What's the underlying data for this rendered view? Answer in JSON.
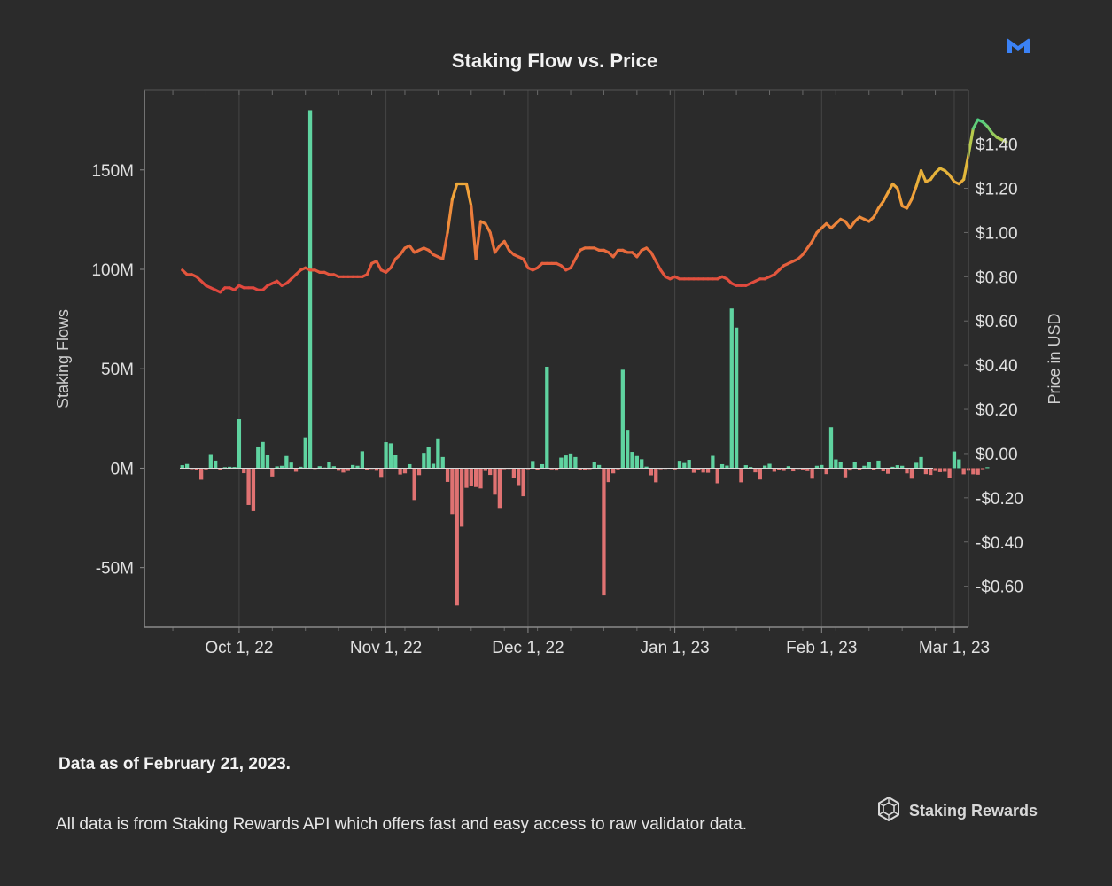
{
  "brand": {
    "name": "Staking Rewards",
    "color": "#3b82f6"
  },
  "footer": {
    "date_note": "Data as of February 21, 2023.",
    "source_note": "All data is from Staking Rewards API which offers fast and easy access to raw validator data."
  },
  "colors": {
    "background": "#2b2b2b",
    "positive_bar": "#5fd3a0",
    "negative_bar": "#e07272",
    "price_low": "#e0473e",
    "price_mid": "#f2a23a",
    "price_high": "#3fd08a"
  },
  "chart_data": {
    "type": "bar",
    "title": "Staking Flow vs. Price",
    "ylabel": "Staking Flows",
    "y2label": "Price in USD",
    "ylim": [
      -80000000,
      190000000
    ],
    "y2lim": [
      -0.7857,
      1.6429
    ],
    "yticks": [
      {
        "value": -50000000,
        "label": "-50M"
      },
      {
        "value": 0,
        "label": "0M"
      },
      {
        "value": 50000000,
        "label": "50M"
      },
      {
        "value": 100000000,
        "label": "100M"
      },
      {
        "value": 150000000,
        "label": "150M"
      }
    ],
    "y2ticks": [
      {
        "value": -0.6,
        "label": "-$0.60"
      },
      {
        "value": -0.4,
        "label": "-$0.40"
      },
      {
        "value": -0.2,
        "label": "-$0.20"
      },
      {
        "value": 0,
        "label": "$0.00"
      },
      {
        "value": 0.2,
        "label": "$0.20"
      },
      {
        "value": 0.4,
        "label": "$0.40"
      },
      {
        "value": 0.6,
        "label": "$0.60"
      },
      {
        "value": 0.8,
        "label": "$0.80"
      },
      {
        "value": 1.0,
        "label": "$1.00"
      },
      {
        "value": 1.2,
        "label": "$1.20"
      },
      {
        "value": 1.4,
        "label": "$1.40"
      }
    ],
    "xlim": [
      "2022-09-11",
      "2023-03-04"
    ],
    "xticks": [
      {
        "date": "2022-10-01",
        "label": "Oct 1, 22"
      },
      {
        "date": "2022-11-01",
        "label": "Nov 1, 22"
      },
      {
        "date": "2022-12-01",
        "label": "Dec 1, 22"
      },
      {
        "date": "2023-01-01",
        "label": "Jan 1, 23"
      },
      {
        "date": "2023-02-01",
        "label": "Feb 1, 23"
      },
      {
        "date": "2023-03-01",
        "label": "Mar 1, 23"
      }
    ],
    "grid": true,
    "series": [
      {
        "kind": "bar",
        "start_date": "2022-09-19",
        "values": [
          1.5,
          2.1,
          -0.5,
          -0.7,
          -5.8,
          -0.6,
          7.1,
          3.8,
          -0.7,
          0.5,
          0.7,
          0.6,
          24.7,
          -2.5,
          -18.5,
          -21.6,
          10.9,
          13.2,
          6.6,
          -4.2,
          0.9,
          1.2,
          6.1,
          2.8,
          -1.8,
          0.7,
          15.5,
          180.0,
          -0.4,
          1.0,
          0.3,
          3.1,
          1.0,
          -1.3,
          -2.2,
          -1.4,
          1.6,
          1.2,
          8.5,
          -0.7,
          -0.4,
          -1.3,
          -4.4,
          13.1,
          12.5,
          6.5,
          -3.2,
          -2.6,
          2.0,
          -16.0,
          -3.5,
          7.7,
          10.8,
          2.2,
          15.0,
          5.6,
          -6.9,
          -23.1,
          -69.0,
          -29.4,
          -9.9,
          -9.0,
          -9.5,
          -10.2,
          -1.4,
          -3.4,
          -13.3,
          -20.0,
          -0.5,
          -0.2,
          -4.8,
          -8.5,
          -14.1,
          -0.5,
          3.6,
          -0.7,
          2.0,
          51.0,
          -0.6,
          -1.2,
          5.3,
          6.4,
          7.4,
          5.6,
          -0.9,
          -1.0,
          -0.5,
          3.2,
          1.6,
          -64.0,
          -7.0,
          -2.6,
          -0.6,
          49.5,
          19.3,
          8.2,
          6.1,
          4.5,
          0.8,
          -3.6,
          -7.1,
          -0.5,
          -0.2,
          0.2,
          -0.6,
          3.7,
          2.6,
          4.2,
          -2.3,
          -0.8,
          -2.2,
          -2.3,
          6.2,
          -7.6,
          2.0,
          1.3,
          80.3,
          70.7,
          -7.1,
          1.5,
          0.6,
          -2.1,
          -5.7,
          1.3,
          2.2,
          -1.8,
          -0.8,
          -1.4,
          1.0,
          -1.6,
          -0.4,
          -1.0,
          -1.5,
          -5.3,
          1.2,
          1.6,
          -3.0,
          20.6,
          4.4,
          3.2,
          -4.6,
          -1.2,
          3.3,
          -0.8,
          1.2,
          2.9,
          -1.0,
          3.8,
          -1.6,
          -2.8,
          0.7,
          1.5,
          1.2,
          -2.6,
          -5.3,
          2.7,
          5.6,
          -3.0,
          -3.4,
          -1.4,
          -2.0,
          -1.8,
          -5.1,
          8.4,
          4.4,
          -3.1,
          -1.3,
          -3.1,
          -3.3,
          -0.5,
          0.5
        ]
      },
      {
        "kind": "line",
        "axis": "right",
        "start_date": "2022-09-19",
        "values": [
          0.83,
          0.81,
          0.81,
          0.8,
          0.78,
          0.76,
          0.75,
          0.74,
          0.73,
          0.75,
          0.75,
          0.74,
          0.76,
          0.75,
          0.75,
          0.75,
          0.74,
          0.74,
          0.76,
          0.77,
          0.78,
          0.76,
          0.77,
          0.79,
          0.81,
          0.83,
          0.84,
          0.83,
          0.83,
          0.82,
          0.82,
          0.81,
          0.81,
          0.8,
          0.8,
          0.8,
          0.8,
          0.8,
          0.8,
          0.81,
          0.86,
          0.87,
          0.83,
          0.82,
          0.84,
          0.88,
          0.9,
          0.93,
          0.94,
          0.91,
          0.92,
          0.93,
          0.92,
          0.9,
          0.89,
          0.88,
          1.0,
          1.15,
          1.22,
          1.22,
          1.22,
          1.12,
          0.88,
          1.05,
          1.04,
          1.0,
          0.91,
          0.94,
          0.96,
          0.92,
          0.9,
          0.89,
          0.88,
          0.84,
          0.83,
          0.84,
          0.86,
          0.86,
          0.86,
          0.86,
          0.85,
          0.83,
          0.84,
          0.88,
          0.92,
          0.93,
          0.93,
          0.93,
          0.92,
          0.92,
          0.91,
          0.89,
          0.92,
          0.92,
          0.91,
          0.91,
          0.89,
          0.92,
          0.93,
          0.91,
          0.87,
          0.83,
          0.8,
          0.79,
          0.8,
          0.79,
          0.79,
          0.79,
          0.79,
          0.79,
          0.79,
          0.79,
          0.79,
          0.79,
          0.8,
          0.79,
          0.77,
          0.76,
          0.76,
          0.76,
          0.77,
          0.78,
          0.79,
          0.79,
          0.8,
          0.81,
          0.83,
          0.85,
          0.86,
          0.87,
          0.88,
          0.9,
          0.93,
          0.96,
          1.0,
          1.02,
          1.04,
          1.02,
          1.04,
          1.06,
          1.05,
          1.02,
          1.05,
          1.07,
          1.06,
          1.05,
          1.07,
          1.11,
          1.14,
          1.18,
          1.22,
          1.2,
          1.12,
          1.11,
          1.15,
          1.21,
          1.28,
          1.23,
          1.24,
          1.27,
          1.29,
          1.28,
          1.26,
          1.23,
          1.22,
          1.24,
          1.35,
          1.47,
          1.51,
          1.5,
          1.48,
          1.45,
          1.43,
          1.42,
          1.41
        ]
      }
    ]
  }
}
